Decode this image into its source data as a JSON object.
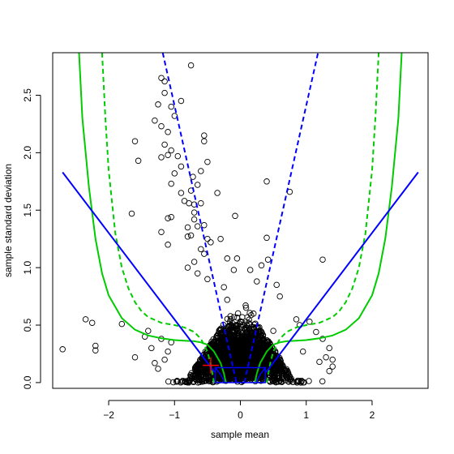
{
  "chart_data": {
    "type": "scatter",
    "title": "",
    "xlabel": "sample mean",
    "ylabel": "sample standard deviation",
    "xlim": [
      -2.85,
      2.85
    ],
    "ylim": [
      -0.05,
      2.87
    ],
    "x_ticks": [
      -2,
      -1,
      0,
      1,
      2
    ],
    "x_tick_labels": [
      "−2",
      "−1",
      "0",
      "1",
      "2"
    ],
    "y_ticks": [
      0.0,
      0.5,
      1.0,
      1.5,
      2.0,
      2.5
    ],
    "y_tick_labels": [
      "0.0",
      "0.5",
      "1.0",
      "1.5",
      "2.0",
      "2.5"
    ],
    "grid": false,
    "legend": "none",
    "colors": {
      "points": "#000000",
      "blue": "#0000ff",
      "green": "#00cc00",
      "marker": "#ff0000"
    },
    "points_outliers": [
      [
        -2.7,
        0.29
      ],
      [
        -2.35,
        0.55
      ],
      [
        -2.25,
        0.52
      ],
      [
        -2.2,
        0.32
      ],
      [
        -2.2,
        0.28
      ],
      [
        -1.6,
        2.1
      ],
      [
        -1.65,
        1.47
      ],
      [
        -1.55,
        1.93
      ],
      [
        -1.8,
        0.51
      ],
      [
        -1.6,
        0.22
      ],
      [
        -1.45,
        0.4
      ],
      [
        -1.4,
        0.45
      ],
      [
        -1.35,
        0.3
      ],
      [
        -1.3,
        0.17
      ],
      [
        -1.25,
        0.12
      ],
      [
        -1.2,
        0.38
      ],
      [
        -1.15,
        0.2
      ],
      [
        -1.1,
        0.27
      ],
      [
        -1.05,
        0.35
      ],
      [
        -1.2,
        2.65
      ],
      [
        -1.15,
        2.62
      ],
      [
        -1.15,
        2.52
      ],
      [
        -1.25,
        2.42
      ],
      [
        -1.05,
        2.4
      ],
      [
        -1.3,
        2.28
      ],
      [
        -1.0,
        2.32
      ],
      [
        -1.2,
        2.23
      ],
      [
        -1.1,
        2.18
      ],
      [
        -1.15,
        2.07
      ],
      [
        -1.1,
        1.98
      ],
      [
        -1.05,
        2.02
      ],
      [
        -0.95,
        1.97
      ],
      [
        -1.2,
        1.96
      ],
      [
        -0.9,
        2.45
      ],
      [
        -0.9,
        1.88
      ],
      [
        -1.0,
        1.82
      ],
      [
        -0.75,
        2.76
      ],
      [
        -0.55,
        2.15
      ],
      [
        -0.55,
        2.1
      ],
      [
        -0.5,
        1.92
      ],
      [
        -0.6,
        1.84
      ],
      [
        -0.72,
        1.79
      ],
      [
        -0.65,
        1.72
      ],
      [
        -0.75,
        1.67
      ],
      [
        -0.9,
        1.65
      ],
      [
        -0.85,
        1.58
      ],
      [
        -0.78,
        1.56
      ],
      [
        -0.7,
        1.55
      ],
      [
        -0.7,
        1.48
      ],
      [
        -1.05,
        1.73
      ],
      [
        -1.1,
        1.43
      ],
      [
        -1.05,
        1.44
      ],
      [
        -0.6,
        1.56
      ],
      [
        -0.35,
        1.65
      ],
      [
        -0.7,
        1.42
      ],
      [
        -0.8,
        1.35
      ],
      [
        -1.2,
        1.31
      ],
      [
        -1.1,
        1.2
      ],
      [
        -0.75,
        1.28
      ],
      [
        -0.8,
        1.27
      ],
      [
        -0.55,
        1.37
      ],
      [
        -0.65,
        1.36
      ],
      [
        -0.5,
        1.25
      ],
      [
        -0.45,
        1.22
      ],
      [
        -0.3,
        1.25
      ],
      [
        -0.6,
        1.16
      ],
      [
        -0.55,
        1.12
      ],
      [
        -0.7,
        1.05
      ],
      [
        -0.8,
        1.0
      ],
      [
        -0.65,
        0.95
      ],
      [
        -0.5,
        0.9
      ],
      [
        -0.25,
        0.83
      ],
      [
        -0.1,
        0.98
      ],
      [
        -0.08,
        1.45
      ],
      [
        -0.2,
        1.08
      ],
      [
        -0.05,
        1.08
      ],
      [
        0.15,
        0.98
      ],
      [
        0.4,
        1.75
      ],
      [
        0.4,
        1.26
      ],
      [
        0.32,
        1.02
      ],
      [
        0.42,
        1.07
      ],
      [
        0.25,
        0.88
      ],
      [
        0.55,
        0.85
      ],
      [
        0.6,
        0.75
      ],
      [
        0.75,
        1.66
      ],
      [
        1.25,
        1.07
      ],
      [
        0.85,
        0.55
      ],
      [
        0.9,
        0.5
      ],
      [
        1.05,
        0.53
      ],
      [
        1.15,
        0.44
      ],
      [
        1.25,
        0.38
      ],
      [
        1.35,
        0.3
      ],
      [
        1.3,
        0.22
      ],
      [
        1.4,
        0.2
      ],
      [
        1.4,
        0.14
      ],
      [
        1.2,
        0.18
      ],
      [
        0.95,
        0.27
      ],
      [
        1.35,
        0.1
      ],
      [
        0.3,
        0.42
      ],
      [
        -0.2,
        0.72
      ],
      [
        0.1,
        0.5
      ],
      [
        0.2,
        0.6
      ],
      [
        0.5,
        0.45
      ],
      [
        0.4,
        0.32
      ]
    ],
    "dense_cloud": {
      "count": 2800,
      "seed": 7,
      "x_center": 0.0,
      "x_spread": 0.32,
      "y_scale": 0.2
    },
    "blue_box": {
      "x": [
        -0.38,
        0.38
      ],
      "y": [
        0.0,
        0.13
      ]
    },
    "blue_dashed_lines": [
      {
        "x": [
          -1.18,
          -0.06
        ],
        "y": [
          2.87,
          0.0
        ]
      },
      {
        "x": [
          0.06,
          1.18
        ],
        "y": [
          0.0,
          2.87
        ]
      }
    ],
    "blue_solid_lines": [
      {
        "x": [
          -2.7,
          -0.39
        ],
        "y": [
          1.83,
          0.09
        ]
      },
      {
        "x": [
          0.39,
          2.7
        ],
        "y": [
          0.09,
          1.83
        ]
      }
    ],
    "blue_small_curves": [
      {
        "x": [
          -0.38,
          -0.34,
          -0.3,
          -0.26,
          -0.24
        ],
        "y": [
          0.13,
          0.1,
          0.07,
          0.03,
          0.0
        ]
      },
      {
        "x": [
          0.24,
          0.26,
          0.3,
          0.34,
          0.38
        ],
        "y": [
          0.0,
          0.03,
          0.07,
          0.1,
          0.13
        ]
      }
    ],
    "green_solid_curves": [
      {
        "x": [
          -2.45,
          -2.4,
          -2.3,
          -2.2,
          -2.1,
          -2.0,
          -1.8,
          -1.6,
          -1.4,
          -1.2,
          -1.0,
          -0.85,
          -0.7,
          -0.6,
          -0.5,
          -0.4,
          -0.3,
          -0.25,
          -0.22
        ],
        "y": [
          2.87,
          2.3,
          1.7,
          1.25,
          0.95,
          0.76,
          0.56,
          0.46,
          0.41,
          0.385,
          0.37,
          0.365,
          0.36,
          0.35,
          0.33,
          0.27,
          0.17,
          0.08,
          0.0
        ]
      },
      {
        "x": [
          0.22,
          0.25,
          0.3,
          0.4,
          0.5,
          0.6,
          0.7,
          0.85,
          1.0,
          1.2,
          1.4,
          1.6,
          1.8,
          2.0,
          2.1,
          2.2,
          2.3,
          2.4,
          2.45
        ],
        "y": [
          0.0,
          0.08,
          0.17,
          0.27,
          0.33,
          0.35,
          0.36,
          0.365,
          0.37,
          0.385,
          0.41,
          0.46,
          0.56,
          0.76,
          0.95,
          1.25,
          1.7,
          2.3,
          2.87
        ]
      }
    ],
    "green_dashed_curves": [
      {
        "x": [
          -2.1,
          -2.05,
          -2.0,
          -1.9,
          -1.8,
          -1.7,
          -1.6,
          -1.5,
          -1.4,
          -1.2,
          -1.0,
          -0.85,
          -0.7,
          -0.6,
          -0.5,
          -0.45,
          -0.4
        ],
        "y": [
          2.87,
          2.3,
          1.85,
          1.3,
          1.0,
          0.82,
          0.7,
          0.62,
          0.57,
          0.52,
          0.5,
          0.48,
          0.44,
          0.38,
          0.27,
          0.16,
          0.0
        ]
      },
      {
        "x": [
          0.4,
          0.45,
          0.5,
          0.6,
          0.7,
          0.85,
          1.0,
          1.2,
          1.4,
          1.5,
          1.6,
          1.7,
          1.8,
          1.9,
          2.0,
          2.05,
          2.1
        ],
        "y": [
          0.0,
          0.16,
          0.27,
          0.38,
          0.44,
          0.48,
          0.5,
          0.52,
          0.57,
          0.62,
          0.7,
          0.82,
          1.0,
          1.3,
          1.85,
          2.3,
          2.87
        ]
      }
    ],
    "marker": {
      "x": -0.45,
      "y": 0.15
    }
  }
}
